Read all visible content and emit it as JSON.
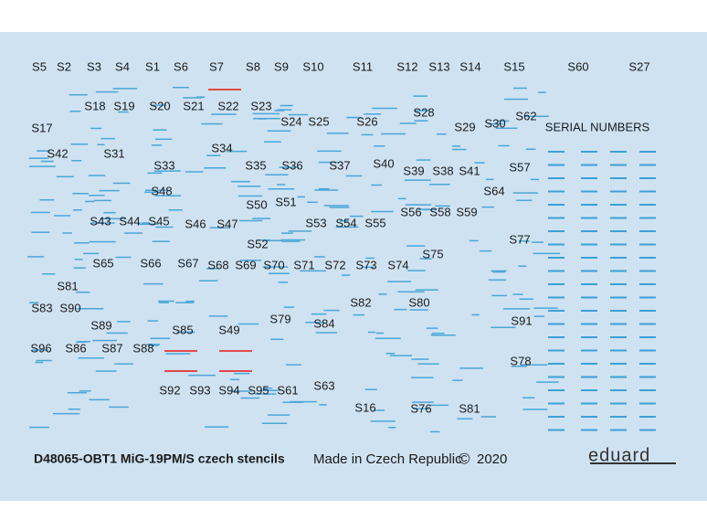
{
  "labels": [
    "S5",
    "S2",
    "S3",
    "S4",
    "S1",
    "S6",
    "S7",
    "S8",
    "S9",
    "S10",
    "S11",
    "S12",
    "S13",
    "S14",
    "S15",
    "S60",
    "S27",
    "S18",
    "S19",
    "S20",
    "S21",
    "S22",
    "S23",
    "S28",
    "S17",
    "S24",
    "S25",
    "S26",
    "S29",
    "S30",
    "S62",
    "S42",
    "S31",
    "S34",
    "S33",
    "S35",
    "S36",
    "S37",
    "S40",
    "S39",
    "S38",
    "S41",
    "S57",
    "S48",
    "S64",
    "S51",
    "S50",
    "S56",
    "S58",
    "S59",
    "S43",
    "S44",
    "S45",
    "S46",
    "S47",
    "S53",
    "S54",
    "S55",
    "S77",
    "S52",
    "S75",
    "S65",
    "S66",
    "S67",
    "S68",
    "S69",
    "S70",
    "S71",
    "S72",
    "S73",
    "S74",
    "S81",
    "S83",
    "S90",
    "S82",
    "S80",
    "S79",
    "S84",
    "S91",
    "S89",
    "S85",
    "S49",
    "S96",
    "S86",
    "S87",
    "S88",
    "S78",
    "S63",
    "S92",
    "S93",
    "S94",
    "S95",
    "S61",
    "S16",
    "S76",
    "S81"
  ],
  "serial_numbers_title": "SERIAL NUMBERS",
  "footer": {
    "title": "D48065-OBT1 MiG-19PM/S czech stencils",
    "made_in": "Made in Czech Republic",
    "copyright": "©",
    "year": "2020",
    "brand": "eduard"
  }
}
